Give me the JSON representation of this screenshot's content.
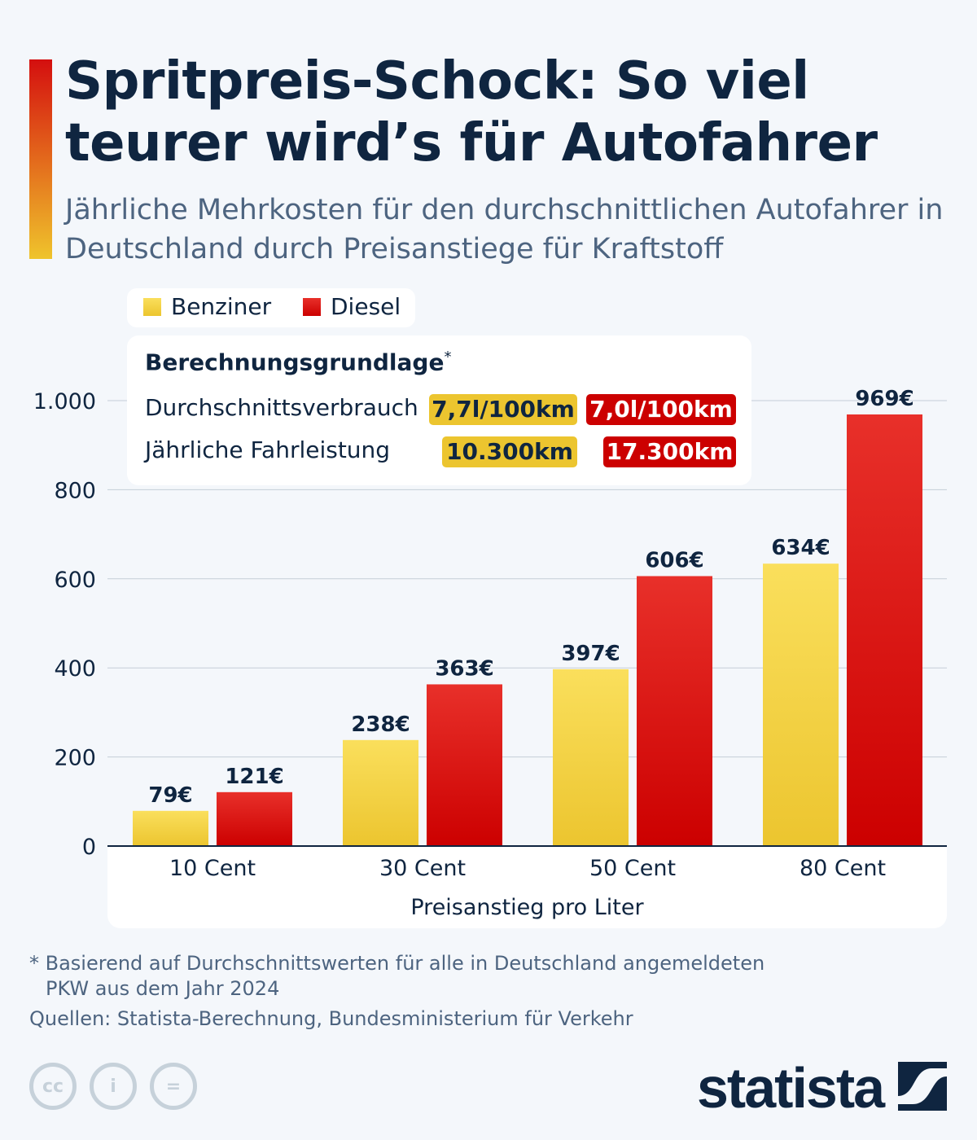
{
  "header": {
    "title": "Spritpreis-Schock: So viel teurer wird’s für Autofahrer",
    "subtitle": "Jährliche Mehrkosten für den durchschnittlichen Autofahrer in Deutschland durch Preisanstiege für Kraftstoff"
  },
  "info": {
    "heading": "Berechnungsgrundlage",
    "asterisk": "*",
    "rows": [
      {
        "label": "Durchschnittsverbrauch",
        "benzin": "7,7l/100km",
        "diesel": "7,0l/100km"
      },
      {
        "label": "Jährliche Fahrleistung",
        "benzin": "10.300km",
        "diesel": "17.300km"
      }
    ]
  },
  "colors": {
    "benzin": "#ecc52f",
    "diesel": "#cc0000",
    "text": "#0f2540",
    "grid": "#c5ced8"
  },
  "chart_data": {
    "type": "bar",
    "categories": [
      "10 Cent",
      "30 Cent",
      "50 Cent",
      "80 Cent"
    ],
    "series": [
      {
        "name": "Benziner",
        "values": [
          79,
          238,
          397,
          634
        ],
        "labels": [
          "79€",
          "238€",
          "397€",
          "634€"
        ]
      },
      {
        "name": "Diesel",
        "values": [
          121,
          363,
          606,
          969
        ],
        "labels": [
          "121€",
          "363€",
          "606€",
          "969€"
        ]
      }
    ],
    "xlabel": "Preisanstieg pro Liter",
    "ylabel": "",
    "ylim": [
      0,
      1000
    ],
    "yticks": [
      0,
      200,
      400,
      600,
      800,
      1000
    ],
    "ytick_labels": [
      "0",
      "200",
      "400",
      "600",
      "800",
      "1.000"
    ],
    "grid": true,
    "legend_position": "top-left"
  },
  "footer": {
    "note_line1": "* Basierend auf Durchschnittswerten für alle in Deutschland angemeldeten",
    "note_line2": "PKW aus dem Jahr 2024",
    "sources": "Quellen: Statista-Berechnung, Bundesministerium für Verkehr",
    "brand": "statista"
  }
}
